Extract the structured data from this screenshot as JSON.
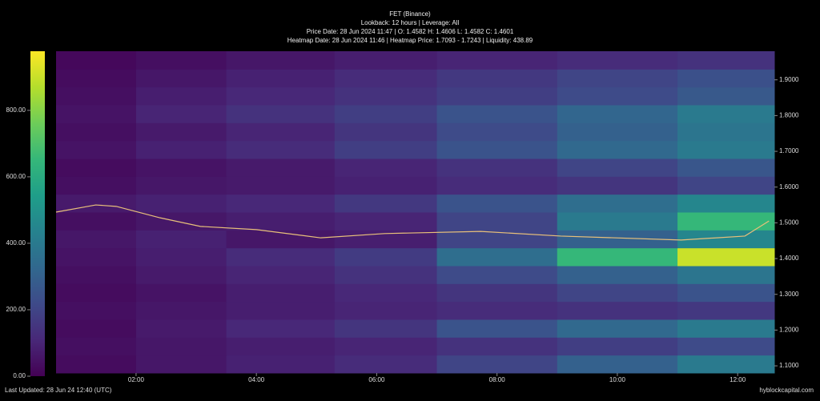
{
  "chart_data": {
    "type": "heatmap",
    "title": "FET (Binance)",
    "subtitle": "Lookback: 12 hours | Leverage: All",
    "price_info": "Price Date: 28 Jun 2024 11:47 | O: 1.4582 H: 1.4606 L: 1.4582 C: 1.4601",
    "heatmap_info": "Heatmap Date: 28 Jun 2024 11:46 | Heatmap Price: 1.7093 - 1.7243 | Liquidity: 438.89",
    "footer_left": "Last Updated: 28 Jun 24 12:40 (UTC)",
    "footer_right": "hyblockcapital.com",
    "xlim": [
      0.67,
      12.61
    ],
    "xticks": [
      {
        "value": 2,
        "label": "02:00"
      },
      {
        "value": 4,
        "label": "04:00"
      },
      {
        "value": 6,
        "label": "06:00"
      },
      {
        "value": 8,
        "label": "08:00"
      },
      {
        "value": 10,
        "label": "10:00"
      },
      {
        "value": 12,
        "label": "12:00"
      }
    ],
    "ylim": [
      1.08,
      1.98
    ],
    "yticks": [
      {
        "value": 1.1,
        "label": "1.1000"
      },
      {
        "value": 1.2,
        "label": "1.2000"
      },
      {
        "value": 1.3,
        "label": "1.3000"
      },
      {
        "value": 1.4,
        "label": "1.4000"
      },
      {
        "value": 1.5,
        "label": "1.5000"
      },
      {
        "value": 1.6,
        "label": "1.6000"
      },
      {
        "value": 1.7,
        "label": "1.7000"
      },
      {
        "value": 1.8,
        "label": "1.8000"
      },
      {
        "value": 1.9,
        "label": "1.9000"
      }
    ],
    "clim": [
      0,
      978
    ],
    "cticks": [
      {
        "value": 0,
        "label": "0.00"
      },
      {
        "value": 200,
        "label": "200.00"
      },
      {
        "value": 400,
        "label": "400.00"
      },
      {
        "value": 600,
        "label": "600.00"
      },
      {
        "value": 800,
        "label": "800.00"
      }
    ],
    "colormap": "viridis",
    "heatmap": {
      "x_edges": [
        0.67,
        2,
        3.5,
        5.3,
        7,
        9,
        11,
        12.61
      ],
      "y_edges": [
        1.08,
        1.13,
        1.18,
        1.23,
        1.28,
        1.33,
        1.38,
        1.43,
        1.48,
        1.53,
        1.58,
        1.63,
        1.68,
        1.73,
        1.78,
        1.83,
        1.88,
        1.93,
        1.98
      ],
      "values": [
        [
          30,
          60,
          90,
          120,
          200,
          300,
          400
        ],
        [
          40,
          60,
          80,
          100,
          140,
          180,
          220
        ],
        [
          30,
          70,
          110,
          150,
          250,
          330,
          400
        ],
        [
          40,
          60,
          80,
          100,
          120,
          140,
          160
        ],
        [
          30,
          50,
          80,
          110,
          150,
          200,
          250
        ],
        [
          40,
          70,
          100,
          140,
          220,
          300,
          380
        ],
        [
          50,
          80,
          120,
          170,
          350,
          650,
          900
        ],
        [
          60,
          90,
          60,
          80,
          200,
          300,
          450
        ],
        [
          40,
          60,
          80,
          100,
          200,
          400,
          650
        ],
        [
          70,
          90,
          110,
          160,
          250,
          350,
          450
        ],
        [
          40,
          60,
          70,
          90,
          120,
          150,
          200
        ],
        [
          30,
          50,
          70,
          100,
          140,
          200,
          260
        ],
        [
          50,
          90,
          120,
          180,
          250,
          330,
          400
        ],
        [
          40,
          70,
          100,
          150,
          220,
          300,
          380
        ],
        [
          50,
          100,
          140,
          180,
          250,
          320,
          400
        ],
        [
          40,
          80,
          110,
          140,
          180,
          220,
          270
        ],
        [
          30,
          60,
          90,
          120,
          160,
          200,
          240
        ],
        [
          20,
          40,
          60,
          80,
          100,
          120,
          140
        ]
      ]
    },
    "price": {
      "color": "#e8c07a",
      "x": [
        0.67,
        1.33,
        1.67,
        2.4,
        3.07,
        4.0,
        5.07,
        6.13,
        7.73,
        9.06,
        11.06,
        12.12,
        12.52
      ],
      "y": [
        1.53,
        1.55,
        1.546,
        1.514,
        1.49,
        1.481,
        1.458,
        1.47,
        1.476,
        1.463,
        1.452,
        1.463,
        1.505
      ]
    }
  }
}
